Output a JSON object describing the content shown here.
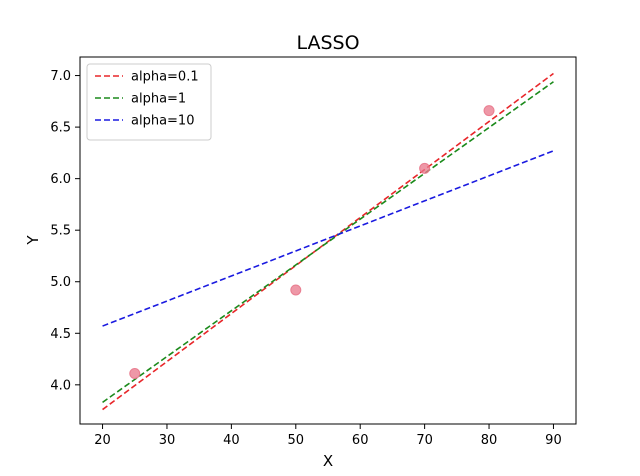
{
  "chart_data": {
    "type": "scatter",
    "title": "LASSO",
    "xlabel": "X",
    "ylabel": "Y",
    "xlim": [
      16.5,
      93.5
    ],
    "ylim": [
      3.62,
      7.18
    ],
    "xticks": [
      20,
      30,
      40,
      50,
      60,
      70,
      80,
      90
    ],
    "yticks": [
      4.0,
      4.5,
      5.0,
      5.5,
      6.0,
      6.5,
      7.0
    ],
    "ytick_labels": [
      "4.0",
      "4.5",
      "5.0",
      "5.5",
      "6.0",
      "6.5",
      "7.0"
    ],
    "grid": false,
    "legend_position": "top-left",
    "points": {
      "color": "#e8768a",
      "x": [
        25,
        50,
        70,
        80
      ],
      "y": [
        4.11,
        4.92,
        6.1,
        6.66
      ]
    },
    "series": [
      {
        "name": "alpha=0.1",
        "color": "#e8262a",
        "x": [
          20,
          90
        ],
        "y": [
          3.76,
          7.02
        ]
      },
      {
        "name": "alpha=1",
        "color": "#1b8a1b",
        "x": [
          20,
          90
        ],
        "y": [
          3.83,
          6.94
        ]
      },
      {
        "name": "alpha=10",
        "color": "#1a1ae0",
        "x": [
          20,
          90
        ],
        "y": [
          4.57,
          6.27
        ]
      }
    ]
  }
}
